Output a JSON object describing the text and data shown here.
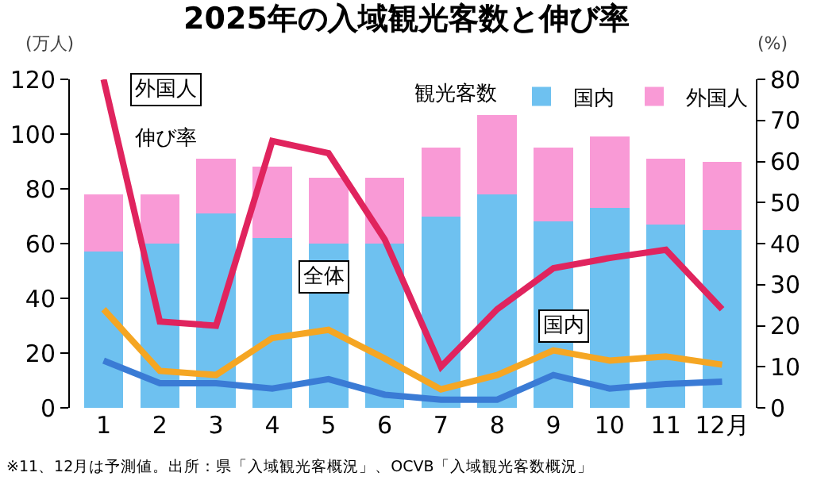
{
  "chart_data": {
    "type": "bar",
    "title": "2025年の入域観光客数と伸び率",
    "ylabel": "(万人)",
    "y2label": "(%)",
    "legend_title": "観光客数",
    "stacked": true,
    "legend": "top right",
    "grid": false,
    "categories": [
      "1",
      "2",
      "3",
      "4",
      "5",
      "6",
      "7",
      "8",
      "9",
      "10",
      "11",
      "12月"
    ],
    "ylim": [
      0,
      120
    ],
    "yticks": [
      0,
      20,
      40,
      60,
      80,
      100,
      120
    ],
    "y2lim": [
      0,
      80
    ],
    "y2ticks": [
      0,
      10,
      20,
      30,
      40,
      50,
      60,
      70,
      80
    ],
    "series": [
      {
        "name": "国内",
        "color": "#6ec1f0",
        "values": [
          57,
          60,
          71,
          62,
          60,
          60,
          70,
          78,
          68,
          73,
          67,
          65
        ]
      },
      {
        "name": "外国人",
        "color": "#f99ad6",
        "values": [
          21,
          18,
          20,
          26,
          24,
          24,
          25,
          29,
          27,
          26,
          24,
          25
        ]
      },
      {
        "type": "line",
        "axis": "y2",
        "color": "#e0245e",
        "values": [
          80,
          21,
          20,
          65,
          62,
          41,
          10,
          24,
          34,
          36.5,
          38.5,
          24
        ]
      },
      {
        "type": "line",
        "axis": "y2",
        "color": "#f5a623",
        "values": [
          24,
          9,
          8,
          17,
          19,
          12,
          4.5,
          8,
          14,
          11.5,
          12.5,
          10.5
        ]
      },
      {
        "type": "line",
        "axis": "y2",
        "color": "#3a7bd5",
        "values": [
          11.5,
          6,
          6,
          4.7,
          7,
          3.2,
          2,
          2,
          8,
          4.7,
          5.8,
          6.4
        ]
      }
    ],
    "annotations": [
      "外国人",
      "伸び率",
      "全体",
      "国内",
      "※11、12月は予測値。出所：県「入域観光客概況」、OCVB「入域観光客数概況」"
    ]
  }
}
